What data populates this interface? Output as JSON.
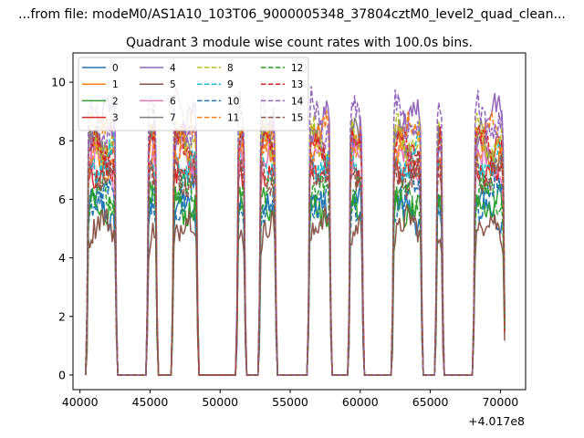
{
  "window": {
    "suptitle": "...from file: modeM0/AS1A10_103T06_9000005348_37804cztM0_level2_quad_clean..."
  },
  "chart_data": {
    "type": "line",
    "title": "Quadrant 3 module wise count rates with 100.0s bins.",
    "xlabel": "",
    "ylabel": "",
    "x_offset_label": "+4.017e8",
    "xlim": [
      39500,
      71800
    ],
    "ylim": [
      -0.5,
      11.0
    ],
    "x_ticks": [
      40000,
      45000,
      50000,
      55000,
      60000,
      65000,
      70000
    ],
    "x_tick_labels": [
      "40000",
      "45000",
      "50000",
      "55000",
      "60000",
      "65000",
      "70000"
    ],
    "y_ticks": [
      0,
      2,
      4,
      6,
      8,
      10
    ],
    "y_tick_labels": [
      "0",
      "2",
      "4",
      "6",
      "8",
      "10"
    ],
    "grid": false,
    "legend": {
      "placement": "upper-left",
      "columns": 4
    },
    "bin_seconds": 100,
    "on_segments": [
      [
        40500,
        42600
      ],
      [
        44800,
        45500
      ],
      [
        46600,
        48400
      ],
      [
        51200,
        51800
      ],
      [
        52800,
        54000
      ],
      [
        56300,
        57900
      ],
      [
        59200,
        60200
      ],
      [
        62300,
        64400
      ],
      [
        65400,
        65900
      ],
      [
        68100,
        70300
      ]
    ],
    "series": [
      {
        "name": "0",
        "color": "#1f77b4",
        "dash": "solid",
        "level": 5.6
      },
      {
        "name": "1",
        "color": "#ff7f0e",
        "dash": "solid",
        "level": 7.6
      },
      {
        "name": "2",
        "color": "#2ca02c",
        "dash": "solid",
        "level": 5.9
      },
      {
        "name": "3",
        "color": "#d62728",
        "dash": "solid",
        "level": 7.3
      },
      {
        "name": "4",
        "color": "#9467bd",
        "dash": "solid",
        "level": 8.6
      },
      {
        "name": "5",
        "color": "#8c564b",
        "dash": "solid",
        "level": 5.0
      },
      {
        "name": "6",
        "color": "#e377c2",
        "dash": "solid",
        "level": 7.1
      },
      {
        "name": "7",
        "color": "#7f7f7f",
        "dash": "solid",
        "level": 7.8
      },
      {
        "name": "8",
        "color": "#bcbd22",
        "dash": "dashed",
        "level": 8.2
      },
      {
        "name": "9",
        "color": "#17becf",
        "dash": "dashed",
        "level": 7.4
      },
      {
        "name": "10",
        "color": "#1f77b4",
        "dash": "dashed",
        "level": 6.1
      },
      {
        "name": "11",
        "color": "#ff7f0e",
        "dash": "dashed",
        "level": 8.0
      },
      {
        "name": "12",
        "color": "#2ca02c",
        "dash": "dashed",
        "level": 6.0
      },
      {
        "name": "13",
        "color": "#d62728",
        "dash": "dashed",
        "level": 7.6
      },
      {
        "name": "14",
        "color": "#9467bd",
        "dash": "dashed",
        "level": 8.8
      },
      {
        "name": "15",
        "color": "#8c564b",
        "dash": "dashed",
        "level": 7.0
      }
    ]
  }
}
